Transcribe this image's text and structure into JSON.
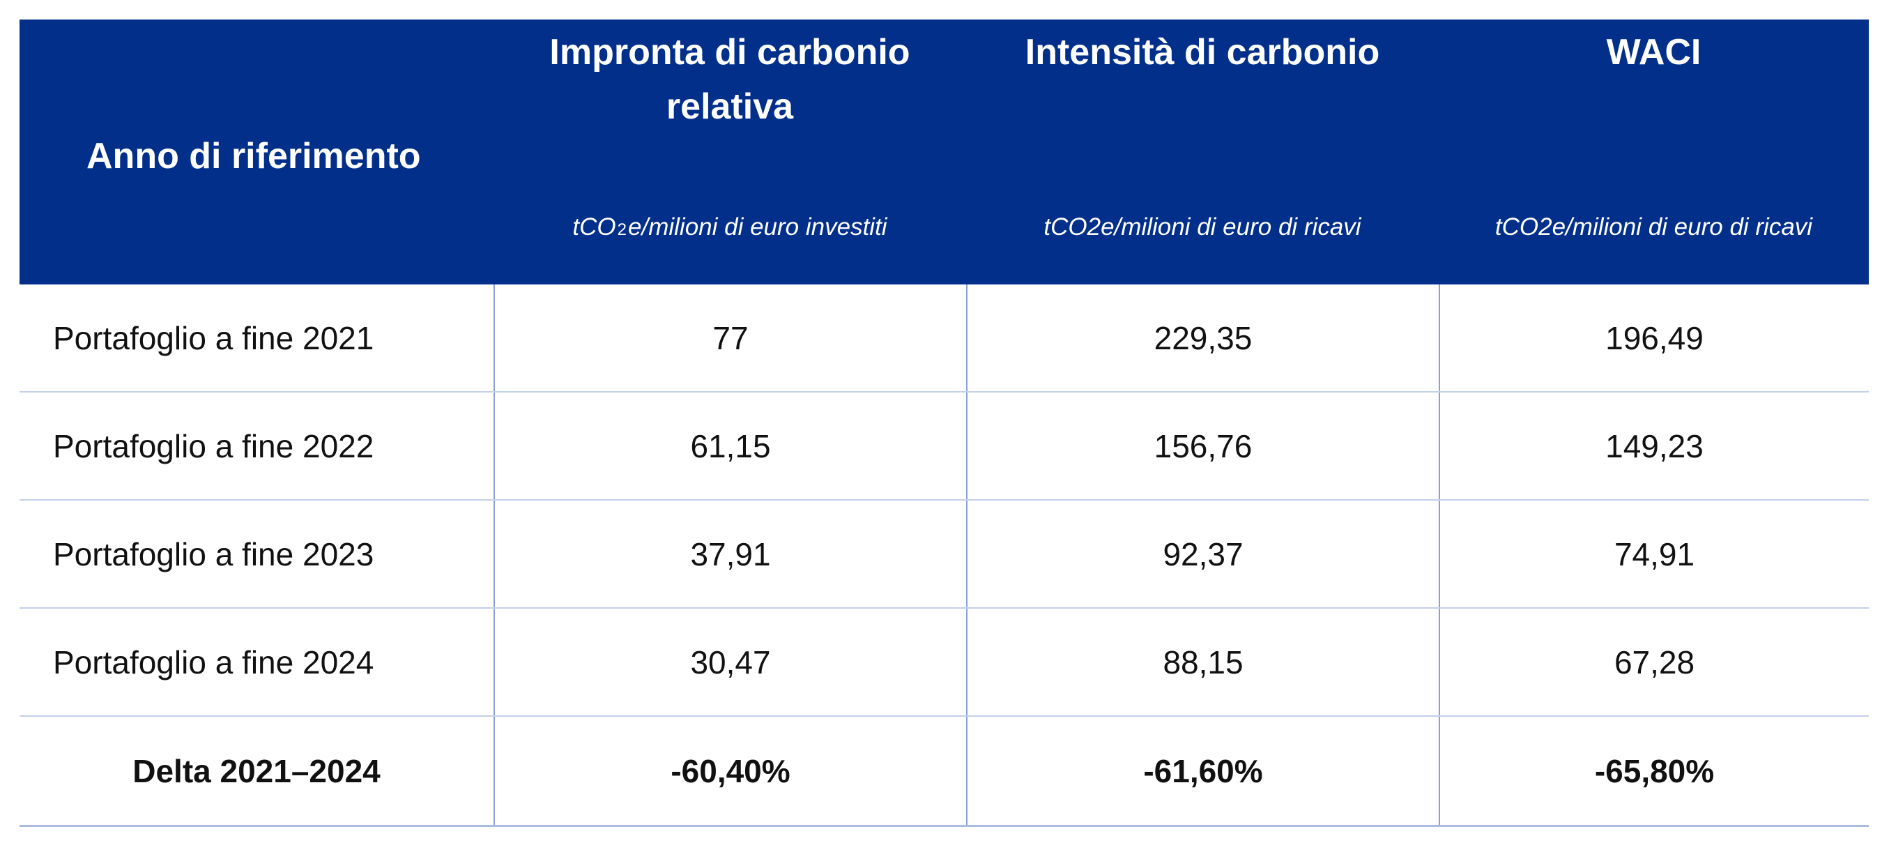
{
  "header": {
    "col0": "Anno di riferimento",
    "col1": {
      "title_line1": "Impronta di carbonio",
      "title_line2": "relativa",
      "unit_pre": "tCO",
      "unit_sub": "2",
      "unit_post": "e/milioni di euro investiti"
    },
    "col2": {
      "title": "Intensità di carbonio",
      "unit": "tCO2e/milioni di euro di ricavi"
    },
    "col3": {
      "title": "WACI",
      "unit": "tCO2e/milioni di euro di ricavi"
    }
  },
  "rows": [
    [
      "Portafoglio a fine 2021",
      "77",
      "229,35",
      "196,49"
    ],
    [
      "Portafoglio a fine 2022",
      "61,15",
      "156,76",
      "149,23"
    ],
    [
      "Portafoglio a fine 2023",
      "37,91",
      "92,37",
      "74,91"
    ],
    [
      "Portafoglio a fine 2024",
      "30,47",
      "88,15",
      "67,28"
    ]
  ],
  "delta": [
    "Delta 2021–2024",
    "-60,40%",
    "-61,60%",
    "-65,80%"
  ],
  "colors": {
    "header_bg": "#012f8a",
    "header_text": "#ffffff",
    "row_divider": "#c3d0ea",
    "column_divider": "#8a9fd6"
  }
}
